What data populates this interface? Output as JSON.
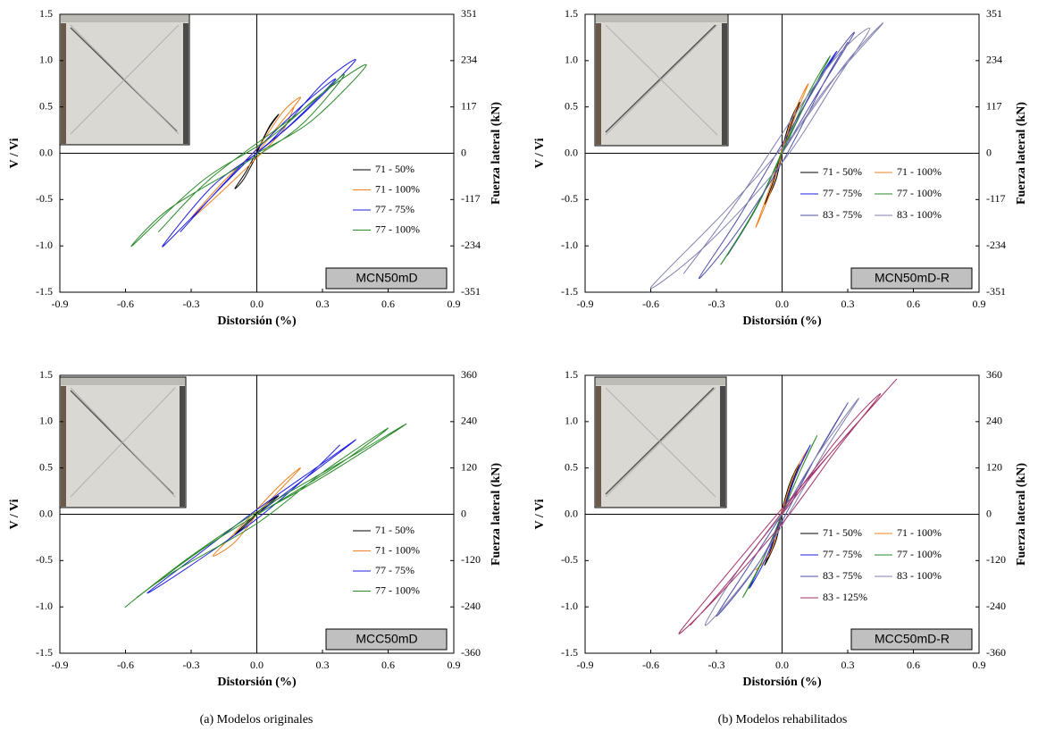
{
  "chart_data": [
    {
      "type": "line",
      "xlabel": "Distorsión (%)",
      "ylabel": "V / Vi",
      "y2label": "Fuerza lateral (kN)",
      "annotation": "MCN50mD",
      "xlim": [
        -0.9,
        0.9
      ],
      "xticks": [
        -0.9,
        -0.6,
        -0.3,
        {
          "value": 0,
          "label": "0.0"
        },
        0.3,
        0.6,
        0.9
      ],
      "ylim": [
        -1.5,
        1.5
      ],
      "yticks": [
        -1.5,
        {
          "value": -1,
          "label": "-1.0"
        },
        -0.5,
        {
          "value": 0,
          "label": "0.0"
        },
        0.5,
        {
          "value": 1,
          "label": "1.0"
        },
        1.5
      ],
      "y2lim": [
        -351,
        351
      ],
      "y2ticks": [
        -351,
        -234,
        -117,
        0,
        117,
        234,
        351
      ],
      "series": [
        {
          "name": "71 - 50%",
          "color": "#000000",
          "x": [
            0,
            0.05,
            0.1,
            0.06,
            0,
            -0.05,
            -0.1,
            -0.06,
            0
          ],
          "values": [
            0,
            0.25,
            0.42,
            0.3,
            0.02,
            -0.2,
            -0.38,
            -0.28,
            -0.02
          ]
        },
        {
          "name": "71 - 100%",
          "color": "#f07f1f",
          "x": [
            0,
            0.1,
            0.2,
            0.12,
            0,
            -0.15,
            -0.3,
            -0.2,
            0,
            0.12,
            0.17
          ],
          "values": [
            0,
            0.3,
            0.6,
            0.45,
            0.05,
            -0.3,
            -0.7,
            -0.5,
            -0.05,
            0.25,
            0.5
          ]
        },
        {
          "name": "77 - 75%",
          "color": "#1f1fe0",
          "x": [
            0,
            0.2,
            0.45,
            0.3,
            0.05,
            -0.2,
            -0.43,
            -0.3,
            -0.05,
            0.15,
            0.36,
            0.2,
            -0.1,
            -0.35
          ],
          "values": [
            0,
            0.4,
            1.0,
            0.75,
            0.1,
            -0.35,
            -1.0,
            -0.7,
            -0.1,
            0.3,
            0.8,
            0.5,
            -0.2,
            -0.85
          ]
        },
        {
          "name": "77 - 100%",
          "color": "#2a8a2a",
          "x": [
            0,
            0.25,
            0.5,
            0.3,
            0.05,
            -0.25,
            -0.57,
            -0.4,
            -0.05,
            0.2,
            0.4,
            0.2,
            -0.2,
            -0.45
          ],
          "values": [
            0,
            0.35,
            0.95,
            0.65,
            0.15,
            -0.3,
            -1.0,
            -0.6,
            -0.1,
            0.3,
            0.85,
            0.45,
            -0.25,
            -0.85
          ]
        }
      ]
    },
    {
      "type": "line",
      "xlabel": "Distorsión (%)",
      "ylabel": "V / Vi",
      "y2label": "Fuerza lateral (kN)",
      "annotation": "MCN50mD-R",
      "xlim": [
        -0.9,
        0.9
      ],
      "xticks": [
        -0.9,
        -0.6,
        -0.3,
        {
          "value": 0,
          "label": "0.0"
        },
        0.3,
        0.6,
        0.9
      ],
      "ylim": [
        -1.5,
        1.5
      ],
      "yticks": [
        -1.5,
        {
          "value": -1,
          "label": "-1.0"
        },
        -0.5,
        {
          "value": 0,
          "label": "0.0"
        },
        0.5,
        {
          "value": 1,
          "label": "1.0"
        },
        1.5
      ],
      "y2lim": [
        -351,
        351
      ],
      "y2ticks": [
        -351,
        -234,
        -117,
        0,
        117,
        234,
        351
      ],
      "series": [
        {
          "name": "71 - 50%",
          "color": "#000000",
          "x": [
            0,
            0.04,
            0.08,
            0.03,
            -0.04,
            -0.08,
            -0.03,
            0
          ],
          "values": [
            0,
            0.3,
            0.55,
            0.3,
            -0.3,
            -0.55,
            -0.3,
            0
          ]
        },
        {
          "name": "71 - 100%",
          "color": "#f07f1f",
          "x": [
            0,
            0.06,
            0.12,
            0.05,
            -0.06,
            -0.12,
            -0.05,
            0
          ],
          "values": [
            0,
            0.4,
            0.75,
            0.4,
            -0.4,
            -0.8,
            -0.4,
            0
          ]
        },
        {
          "name": "77 - 75%",
          "color": "#1f1fe0",
          "x": [
            0,
            0.1,
            0.25,
            0.12,
            -0.1,
            -0.25,
            -0.12,
            0
          ],
          "values": [
            0,
            0.5,
            1.1,
            0.6,
            -0.5,
            -1.1,
            -0.6,
            0
          ]
        },
        {
          "name": "77 - 100%",
          "color": "#2a8a2a",
          "x": [
            0,
            0.1,
            0.22,
            0.1,
            -0.1,
            -0.28,
            -0.12,
            0
          ],
          "values": [
            0,
            0.5,
            1.05,
            0.55,
            -0.5,
            -1.2,
            -0.6,
            0
          ]
        },
        {
          "name": "83 - 75%",
          "color": "#4f4fa8",
          "x": [
            0,
            0.15,
            0.33,
            0.2,
            0,
            -0.2,
            -0.38,
            -0.22,
            0,
            0.2,
            0.3
          ],
          "values": [
            0,
            0.6,
            1.3,
            0.9,
            0.1,
            -0.7,
            -1.35,
            -0.9,
            -0.1,
            0.8,
            1.2
          ]
        },
        {
          "name": "83 - 100%",
          "color": "#8080b0",
          "x": [
            0,
            0.2,
            0.46,
            0.3,
            0.05,
            -0.25,
            -0.6,
            -0.35,
            0,
            0.25,
            0.4,
            0.2,
            -0.2,
            -0.45
          ],
          "values": [
            0,
            0.7,
            1.4,
            1.0,
            0.2,
            -0.6,
            -1.45,
            -1.0,
            -0.1,
            0.8,
            1.35,
            0.9,
            -0.5,
            -1.3
          ]
        }
      ]
    },
    {
      "type": "line",
      "xlabel": "Distorsión (%)",
      "ylabel": "V / Vi",
      "y2label": "Fuerza lateral (kN)",
      "annotation": "MCC50mD",
      "xlim": [
        -0.9,
        0.9
      ],
      "xticks": [
        -0.9,
        -0.6,
        -0.3,
        {
          "value": 0,
          "label": "0.0"
        },
        0.3,
        0.6,
        0.9
      ],
      "ylim": [
        -1.5,
        1.5
      ],
      "yticks": [
        -1.5,
        {
          "value": -1,
          "label": "-1.0"
        },
        -0.5,
        {
          "value": 0,
          "label": "0.0"
        },
        0.5,
        {
          "value": 1,
          "label": "1.0"
        },
        1.5
      ],
      "y2lim": [
        -360,
        360
      ],
      "y2ticks": [
        -360,
        -240,
        -120,
        0,
        120,
        240,
        360
      ],
      "series": [
        {
          "name": "71 - 50%",
          "color": "#000000",
          "x": [
            0,
            0.05,
            0.1,
            0.05,
            -0.05,
            -0.1,
            -0.05,
            0
          ],
          "values": [
            0,
            0.1,
            0.2,
            0.12,
            -0.1,
            -0.22,
            -0.12,
            0
          ]
        },
        {
          "name": "71 - 100%",
          "color": "#f07f1f",
          "x": [
            0,
            0.1,
            0.2,
            0.1,
            -0.1,
            -0.2,
            -0.1,
            0
          ],
          "values": [
            0,
            0.25,
            0.5,
            0.3,
            -0.2,
            -0.45,
            -0.3,
            0
          ]
        },
        {
          "name": "77 - 75%",
          "color": "#1f1fe0",
          "x": [
            0,
            0.2,
            0.45,
            0.3,
            0,
            -0.25,
            -0.5,
            -0.3,
            0,
            0.25,
            0.38
          ],
          "values": [
            0,
            0.35,
            0.8,
            0.55,
            0.05,
            -0.4,
            -0.85,
            -0.55,
            -0.05,
            0.45,
            0.75
          ]
        },
        {
          "name": "77 - 100%",
          "color": "#2a8a2a",
          "x": [
            0,
            0.3,
            0.68,
            0.45,
            0.05,
            -0.3,
            -0.6,
            -0.4,
            0,
            0.3,
            0.6,
            0.35,
            -0.2,
            -0.55
          ],
          "values": [
            0,
            0.4,
            0.97,
            0.65,
            0.1,
            -0.45,
            -1.0,
            -0.65,
            -0.1,
            0.45,
            0.93,
            0.5,
            -0.3,
            -0.9
          ]
        }
      ]
    },
    {
      "type": "line",
      "xlabel": "Distorsión (%)",
      "ylabel": "V / Vi",
      "y2label": "Fuerza lateral (kN)",
      "annotation": "MCC50mD-R",
      "xlim": [
        -0.9,
        0.9
      ],
      "xticks": [
        -0.9,
        -0.6,
        -0.3,
        {
          "value": 0,
          "label": "0.0"
        },
        0.3,
        0.6,
        0.9
      ],
      "ylim": [
        -1.5,
        1.5
      ],
      "yticks": [
        -1.5,
        {
          "value": -1,
          "label": "-1.0"
        },
        -0.5,
        {
          "value": 0,
          "label": "0.0"
        },
        0.5,
        {
          "value": 1,
          "label": "1.0"
        },
        1.5
      ],
      "y2lim": [
        -360,
        360
      ],
      "y2ticks": [
        -360,
        -240,
        -120,
        0,
        120,
        240,
        360
      ],
      "series": [
        {
          "name": "71 - 50%",
          "color": "#000000",
          "x": [
            0,
            0.04,
            0.08,
            0.03,
            -0.04,
            -0.08,
            -0.03,
            0
          ],
          "values": [
            0,
            0.3,
            0.55,
            0.3,
            -0.3,
            -0.55,
            -0.3,
            0
          ]
        },
        {
          "name": "71 - 100%",
          "color": "#f07f1f",
          "x": [
            0,
            0.06,
            0.12,
            0.05,
            -0.06,
            -0.12,
            -0.05,
            0
          ],
          "values": [
            0,
            0.4,
            0.7,
            0.4,
            -0.4,
            -0.6,
            -0.4,
            0
          ]
        },
        {
          "name": "77 - 75%",
          "color": "#1f1fe0",
          "x": [
            0,
            0.06,
            0.13,
            0.06,
            -0.06,
            -0.15,
            -0.07,
            0
          ],
          "values": [
            0,
            0.4,
            0.75,
            0.4,
            -0.4,
            -0.8,
            -0.4,
            0
          ]
        },
        {
          "name": "77 - 100%",
          "color": "#2a8a2a",
          "x": [
            0,
            0.08,
            0.16,
            0.08,
            -0.08,
            -0.18,
            -0.08,
            0
          ],
          "values": [
            0,
            0.45,
            0.85,
            0.45,
            -0.45,
            -0.9,
            -0.45,
            0
          ]
        },
        {
          "name": "83 - 75%",
          "color": "#4f4fa8",
          "x": [
            0,
            0.15,
            0.3,
            0.15,
            -0.1,
            -0.3,
            -0.15,
            0
          ],
          "values": [
            0,
            0.6,
            1.2,
            0.6,
            -0.5,
            -1.1,
            -0.55,
            0
          ]
        },
        {
          "name": "83 - 100%",
          "color": "#8080b0",
          "x": [
            0,
            0.15,
            0.35,
            0.2,
            -0.1,
            -0.35,
            -0.2,
            0
          ],
          "values": [
            0,
            0.6,
            1.25,
            0.7,
            -0.5,
            -1.2,
            -0.6,
            0
          ]
        },
        {
          "name": "83 - 125%",
          "color": "#a3326a",
          "x": [
            0,
            0.2,
            0.52,
            0.35,
            0.05,
            -0.2,
            -0.47,
            -0.3,
            0,
            0.25,
            0.45,
            0.25,
            -0.2,
            -0.42
          ],
          "values": [
            0,
            0.6,
            1.45,
            1.0,
            0.2,
            -0.5,
            -1.28,
            -0.9,
            -0.1,
            0.7,
            1.3,
            0.8,
            -0.6,
            -1.2
          ]
        }
      ]
    }
  ],
  "captions": [
    "(a) Modelos originales",
    "(b) Modelos rehabilitados"
  ]
}
